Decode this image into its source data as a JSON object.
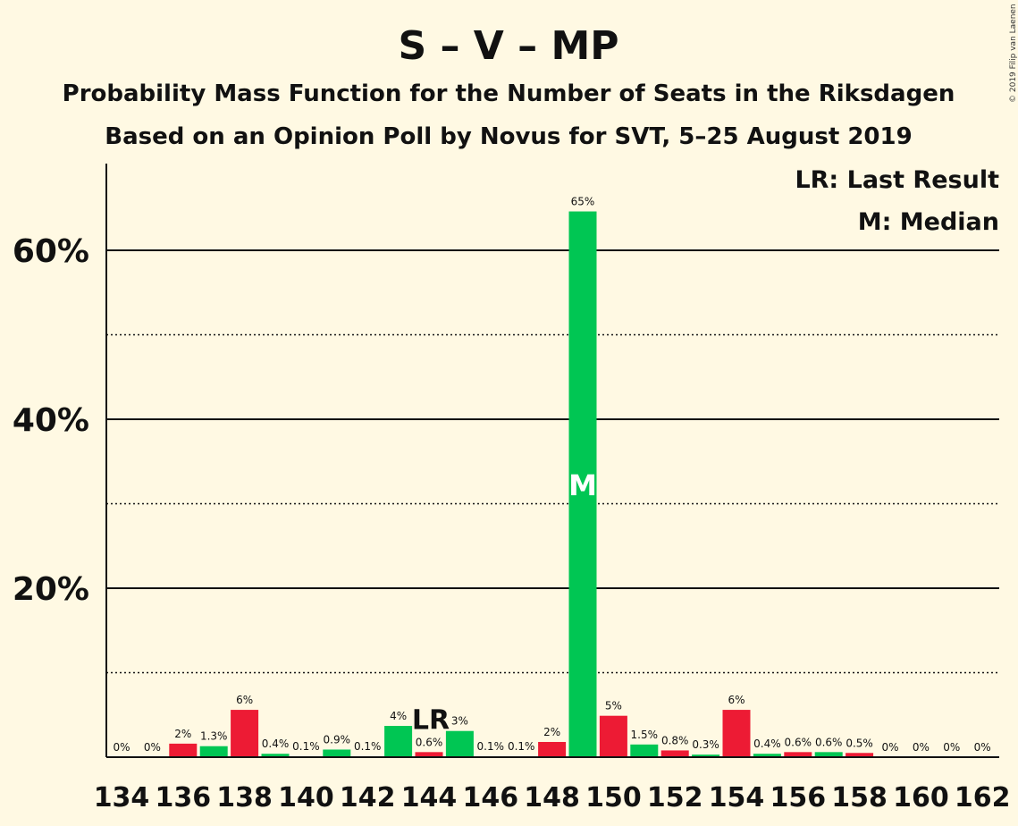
{
  "chart_data": {
    "type": "bar",
    "title": "S – V – MP",
    "subtitle": "Probability Mass Function for the Number of Seats in the Riksdagen",
    "subtitle2": "Based on an Opinion Poll by Novus for SVT, 5–25 August 2019",
    "copyright": "© 2019 Filip van Laenen",
    "legend": {
      "position": "top-right",
      "lr": "LR: Last Result",
      "median": "M: Median"
    },
    "ylim": [
      0,
      70
    ],
    "yticks": [
      {
        "value": 20,
        "label": "20%"
      },
      {
        "value": 40,
        "label": "40%"
      },
      {
        "value": 60,
        "label": "60%"
      }
    ],
    "dotted_grid": [
      10,
      30,
      50
    ],
    "xticks": [
      134,
      136,
      138,
      140,
      142,
      144,
      146,
      148,
      150,
      152,
      154,
      156,
      158,
      160,
      162
    ],
    "colors": {
      "even": "#ed1b34",
      "odd": "#00c653",
      "median_bar": "#00c653"
    },
    "last_result": {
      "seat": 144,
      "label": "LR"
    },
    "median": {
      "seat": 149,
      "label": "M"
    },
    "bars": [
      {
        "seat": 134,
        "value": 0,
        "label": "0%"
      },
      {
        "seat": 135,
        "value": 0,
        "label": "0%"
      },
      {
        "seat": 136,
        "value": 1.6,
        "label": "2%"
      },
      {
        "seat": 137,
        "value": 1.3,
        "label": "1.3%"
      },
      {
        "seat": 138,
        "value": 5.6,
        "label": "6%"
      },
      {
        "seat": 139,
        "value": 0.4,
        "label": "0.4%"
      },
      {
        "seat": 140,
        "value": 0.1,
        "label": "0.1%"
      },
      {
        "seat": 141,
        "value": 0.9,
        "label": "0.9%"
      },
      {
        "seat": 142,
        "value": 0.1,
        "label": "0.1%"
      },
      {
        "seat": 143,
        "value": 3.7,
        "label": "4%"
      },
      {
        "seat": 144,
        "value": 0.6,
        "label": "0.6%"
      },
      {
        "seat": 145,
        "value": 3.1,
        "label": "3%"
      },
      {
        "seat": 146,
        "value": 0.1,
        "label": "0.1%"
      },
      {
        "seat": 147,
        "value": 0.1,
        "label": "0.1%"
      },
      {
        "seat": 148,
        "value": 1.8,
        "label": "2%"
      },
      {
        "seat": 149,
        "value": 64.6,
        "label": "65%"
      },
      {
        "seat": 150,
        "value": 4.9,
        "label": "5%"
      },
      {
        "seat": 151,
        "value": 1.5,
        "label": "1.5%"
      },
      {
        "seat": 152,
        "value": 0.8,
        "label": "0.8%"
      },
      {
        "seat": 153,
        "value": 0.3,
        "label": "0.3%"
      },
      {
        "seat": 154,
        "value": 5.6,
        "label": "6%"
      },
      {
        "seat": 155,
        "value": 0.4,
        "label": "0.4%"
      },
      {
        "seat": 156,
        "value": 0.6,
        "label": "0.6%"
      },
      {
        "seat": 157,
        "value": 0.6,
        "label": "0.6%"
      },
      {
        "seat": 158,
        "value": 0.5,
        "label": "0.5%"
      },
      {
        "seat": 159,
        "value": 0,
        "label": "0%"
      },
      {
        "seat": 160,
        "value": 0,
        "label": "0%"
      },
      {
        "seat": 161,
        "value": 0,
        "label": "0%"
      },
      {
        "seat": 162,
        "value": 0,
        "label": "0%"
      }
    ]
  }
}
